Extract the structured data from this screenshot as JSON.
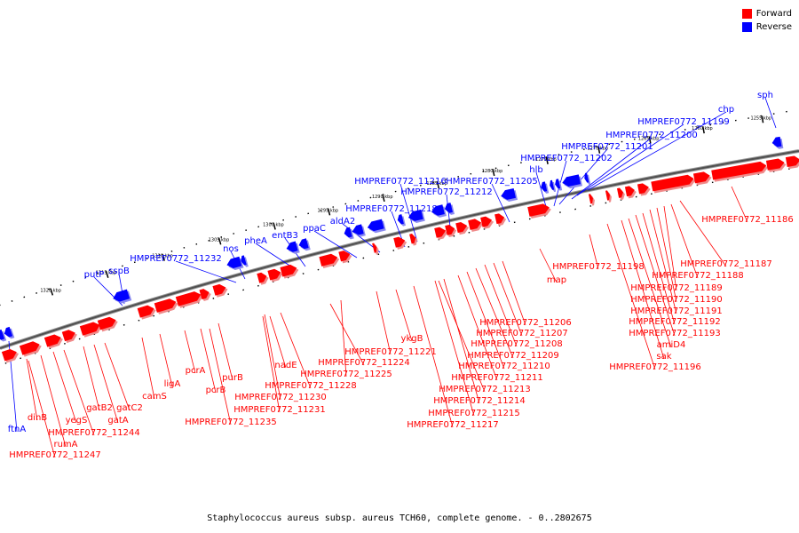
{
  "legend": {
    "forward_label": "Forward",
    "reverse_label": "Reverse",
    "forward_color": "#ff0000",
    "reverse_color": "#0000ff"
  },
  "caption": "Staphylococcus aureus subsp. aureus TCH60, complete genome. - 0..2802675",
  "ticks": [
    "1255 kbp",
    "1260 kbp",
    "1265 kbp",
    "1270 kbp",
    "1275 kbp",
    "1280 kbp",
    "1285 kbp",
    "1290 kbp",
    "1295 kbp",
    "1300 kbp",
    "1305 kbp",
    "1310 kbp",
    "1315 kbp",
    "1320 kbp"
  ],
  "reverse_genes": [
    "ftnA",
    "putP",
    "sspB",
    "HMPREF0772_11232",
    "nos",
    "pheA",
    "entB3",
    "ppaC",
    "aldA2",
    "HMPREF0772_11218",
    "HMPREF0772_11216",
    "HMPREF0772_11212",
    "HMPREF0772_11205",
    "hlb",
    "HMPREF0772_11202",
    "HMPREF0772_11201",
    "HMPREF0772_11200",
    "HMPREF0772_11199",
    "chp",
    "sph"
  ],
  "forward_genes": [
    "dinB",
    "rumA",
    "HMPREF0772_11247",
    "yegS",
    "HMPREF0772_11244",
    "gatB2",
    "gatA",
    "gatC2",
    "camS",
    "ligA",
    "pcrA",
    "pcrB",
    "purB",
    "HMPREF0772_11235",
    "nadE",
    "HMPREF0772_11228",
    "HMPREF0772_11230",
    "HMPREF0772_11231",
    "HMPREF0772_11224",
    "HMPREF0772_11225",
    "HMPREF0772_11221",
    "ykgB",
    "HMPREF0772_11217",
    "HMPREF0772_11215",
    "HMPREF0772_11214",
    "HMPREF0772_11213",
    "HMPREF0772_11211",
    "HMPREF0772_11210",
    "HMPREF0772_11209",
    "HMPREF0772_11208",
    "HMPREF0772_11207",
    "HMPREF0772_11206",
    "map",
    "HMPREF0772_11198",
    "HMPREF0772_11196",
    "sak",
    "amiD4",
    "HMPREF0772_11193",
    "HMPREF0772_11192",
    "HMPREF0772_11191",
    "HMPREF0772_11190",
    "HMPREF0772_11189",
    "HMPREF0772_11188",
    "HMPREF0772_11187",
    "HMPREF0772_11186"
  ]
}
